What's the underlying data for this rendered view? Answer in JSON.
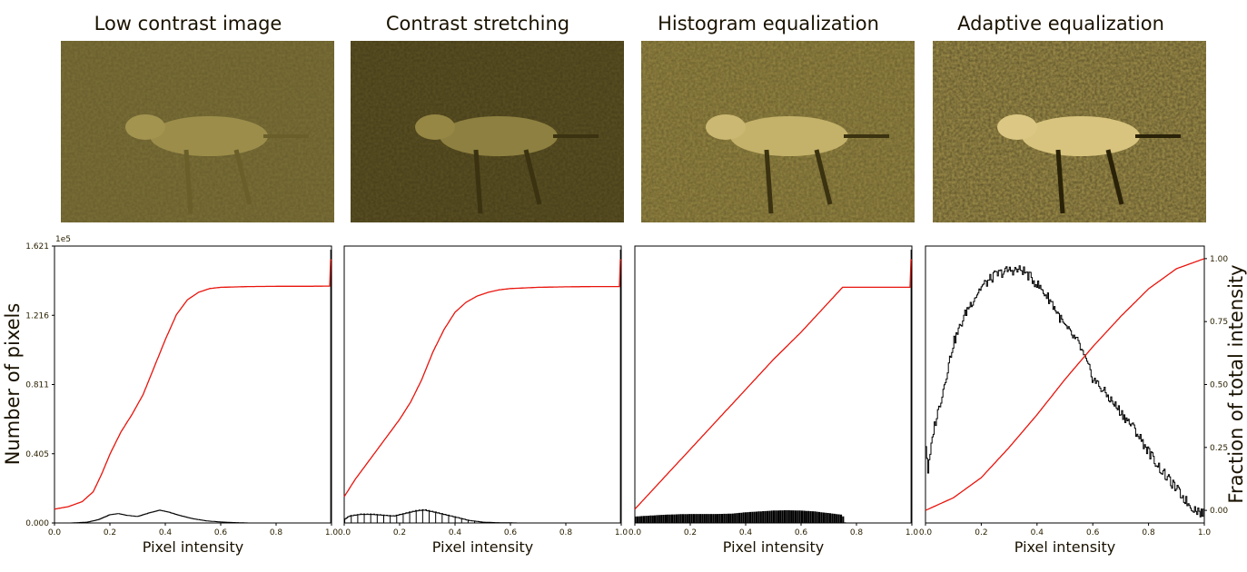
{
  "figure": {
    "ylabel_left": "Number of pixels",
    "ylabel_right": "Fraction of total intensity",
    "y_multiplier": "1e5"
  },
  "panels": [
    {
      "title": "Low contrast image"
    },
    {
      "title": "Contrast stretching"
    },
    {
      "title": "Histogram equalization"
    },
    {
      "title": "Adaptive equalization"
    }
  ],
  "colors": {
    "cdf": "#e8140c",
    "hist": "#000000",
    "image_tint": "#8a7a32",
    "text": "#1a1200"
  },
  "chart_data": [
    {
      "type": "line",
      "title": "Low contrast image",
      "xlabel": "Pixel intensity",
      "ylabel": "Number of pixels",
      "x_ticks": [
        "0.0",
        "0.2",
        "0.4",
        "0.6",
        "0.8",
        "1.0"
      ],
      "y_ticks": [
        "0.000",
        "0.405",
        "0.811",
        "1.216",
        "1.621"
      ],
      "y_multiplier": "1e5",
      "xlim": [
        0,
        1
      ],
      "ylim": [
        0,
        1.621
      ],
      "series": [
        {
          "kind": "histogram",
          "color": "#000000",
          "x": [
            0.0,
            0.06,
            0.12,
            0.16,
            0.2,
            0.23,
            0.26,
            0.3,
            0.34,
            0.38,
            0.41,
            0.45,
            0.5,
            0.55,
            0.6,
            0.64,
            0.68,
            0.7
          ],
          "y": [
            0.0,
            0.0,
            0.005,
            0.02,
            0.048,
            0.055,
            0.045,
            0.038,
            0.058,
            0.075,
            0.065,
            0.045,
            0.025,
            0.012,
            0.006,
            0.003,
            0.001,
            0.0
          ]
        },
        {
          "kind": "cdf",
          "color": "#e8140c",
          "x": [
            0.0,
            0.05,
            0.1,
            0.14,
            0.17,
            0.2,
            0.24,
            0.28,
            0.32,
            0.36,
            0.4,
            0.44,
            0.48,
            0.52,
            0.56,
            0.6,
            0.7,
            0.8,
            0.9,
            0.995,
            0.996,
            1.0
          ],
          "y": [
            0.0,
            0.01,
            0.03,
            0.07,
            0.14,
            0.22,
            0.31,
            0.38,
            0.46,
            0.57,
            0.68,
            0.78,
            0.84,
            0.87,
            0.885,
            0.89,
            0.893,
            0.894,
            0.894,
            0.895,
            1.0,
            1.0
          ]
        }
      ]
    },
    {
      "type": "line",
      "title": "Contrast stretching",
      "xlabel": "Pixel intensity",
      "x_ticks": [
        "0.0",
        "0.2",
        "0.4",
        "0.6",
        "0.8",
        "1.0"
      ],
      "xlim": [
        0,
        1
      ],
      "ylim": [
        0,
        1.621
      ],
      "series": [
        {
          "kind": "histogram",
          "color": "#000000",
          "x": [
            0.0,
            0.02,
            0.06,
            0.1,
            0.14,
            0.18,
            0.22,
            0.26,
            0.29,
            0.32,
            0.36,
            0.4,
            0.45,
            0.5,
            0.55,
            0.6,
            0.63
          ],
          "y": [
            0.02,
            0.04,
            0.05,
            0.05,
            0.045,
            0.04,
            0.055,
            0.07,
            0.075,
            0.065,
            0.05,
            0.035,
            0.015,
            0.005,
            0.002,
            0.001,
            0.0
          ]
        },
        {
          "kind": "cdf",
          "color": "#e8140c",
          "x": [
            0.0,
            0.04,
            0.08,
            0.12,
            0.16,
            0.2,
            0.24,
            0.28,
            0.32,
            0.36,
            0.4,
            0.44,
            0.48,
            0.52,
            0.56,
            0.6,
            0.7,
            0.8,
            0.9,
            0.995,
            0.996,
            1.0
          ],
          "y": [
            0.05,
            0.12,
            0.18,
            0.24,
            0.3,
            0.36,
            0.43,
            0.52,
            0.63,
            0.72,
            0.79,
            0.83,
            0.855,
            0.87,
            0.88,
            0.885,
            0.89,
            0.892,
            0.893,
            0.893,
            1.0,
            1.0
          ]
        }
      ]
    },
    {
      "type": "line",
      "title": "Histogram equalization",
      "xlabel": "Pixel intensity",
      "x_ticks": [
        "0.0",
        "0.2",
        "0.4",
        "0.6",
        "0.8",
        "1.0"
      ],
      "xlim": [
        0,
        1
      ],
      "ylim": [
        0,
        1.621
      ],
      "series": [
        {
          "kind": "histogram",
          "color": "#000000",
          "x": [
            0.0,
            0.05,
            0.1,
            0.15,
            0.2,
            0.25,
            0.3,
            0.35,
            0.4,
            0.45,
            0.5,
            0.55,
            0.6,
            0.65,
            0.7,
            0.75,
            0.76
          ],
          "y": [
            0.035,
            0.04,
            0.045,
            0.048,
            0.05,
            0.05,
            0.05,
            0.052,
            0.06,
            0.065,
            0.07,
            0.072,
            0.07,
            0.065,
            0.055,
            0.045,
            0.0
          ]
        },
        {
          "kind": "cdf",
          "color": "#e8140c",
          "x": [
            0.0,
            0.1,
            0.2,
            0.3,
            0.4,
            0.5,
            0.6,
            0.7,
            0.75,
            0.8,
            0.9,
            0.995,
            0.996,
            1.0
          ],
          "y": [
            0.0,
            0.12,
            0.24,
            0.36,
            0.48,
            0.6,
            0.71,
            0.83,
            0.89,
            0.89,
            0.89,
            0.89,
            1.0,
            1.0
          ]
        }
      ]
    },
    {
      "type": "line",
      "title": "Adaptive equalization",
      "xlabel": "Pixel intensity",
      "ylabel_right": "Fraction of total intensity",
      "x_ticks": [
        "0.0",
        "0.2",
        "0.4",
        "0.6",
        "0.8",
        "1.0"
      ],
      "y2_ticks": [
        "0.00",
        "0.25",
        "0.50",
        "0.75",
        "1.00"
      ],
      "xlim": [
        0,
        1
      ],
      "ylim": [
        0,
        1.621
      ],
      "y2lim": [
        -0.05,
        1.05
      ],
      "series": [
        {
          "kind": "histogram",
          "color": "#000000",
          "x": [
            0.0,
            0.01,
            0.03,
            0.06,
            0.1,
            0.15,
            0.2,
            0.25,
            0.3,
            0.35,
            0.4,
            0.45,
            0.5,
            0.55,
            0.6,
            0.65,
            0.7,
            0.75,
            0.8,
            0.85,
            0.9,
            0.95,
            1.0
          ],
          "y": [
            0.5,
            0.3,
            0.55,
            0.75,
            1.05,
            1.25,
            1.38,
            1.45,
            1.48,
            1.48,
            1.4,
            1.3,
            1.15,
            1.05,
            0.85,
            0.75,
            0.65,
            0.55,
            0.42,
            0.3,
            0.2,
            0.1,
            0.05
          ]
        },
        {
          "kind": "cdf",
          "color": "#e8140c",
          "x": [
            0.0,
            0.1,
            0.2,
            0.3,
            0.4,
            0.5,
            0.6,
            0.7,
            0.8,
            0.9,
            1.0
          ],
          "y": [
            0.0,
            0.05,
            0.13,
            0.25,
            0.38,
            0.52,
            0.65,
            0.77,
            0.88,
            0.96,
            1.0
          ]
        }
      ]
    }
  ]
}
